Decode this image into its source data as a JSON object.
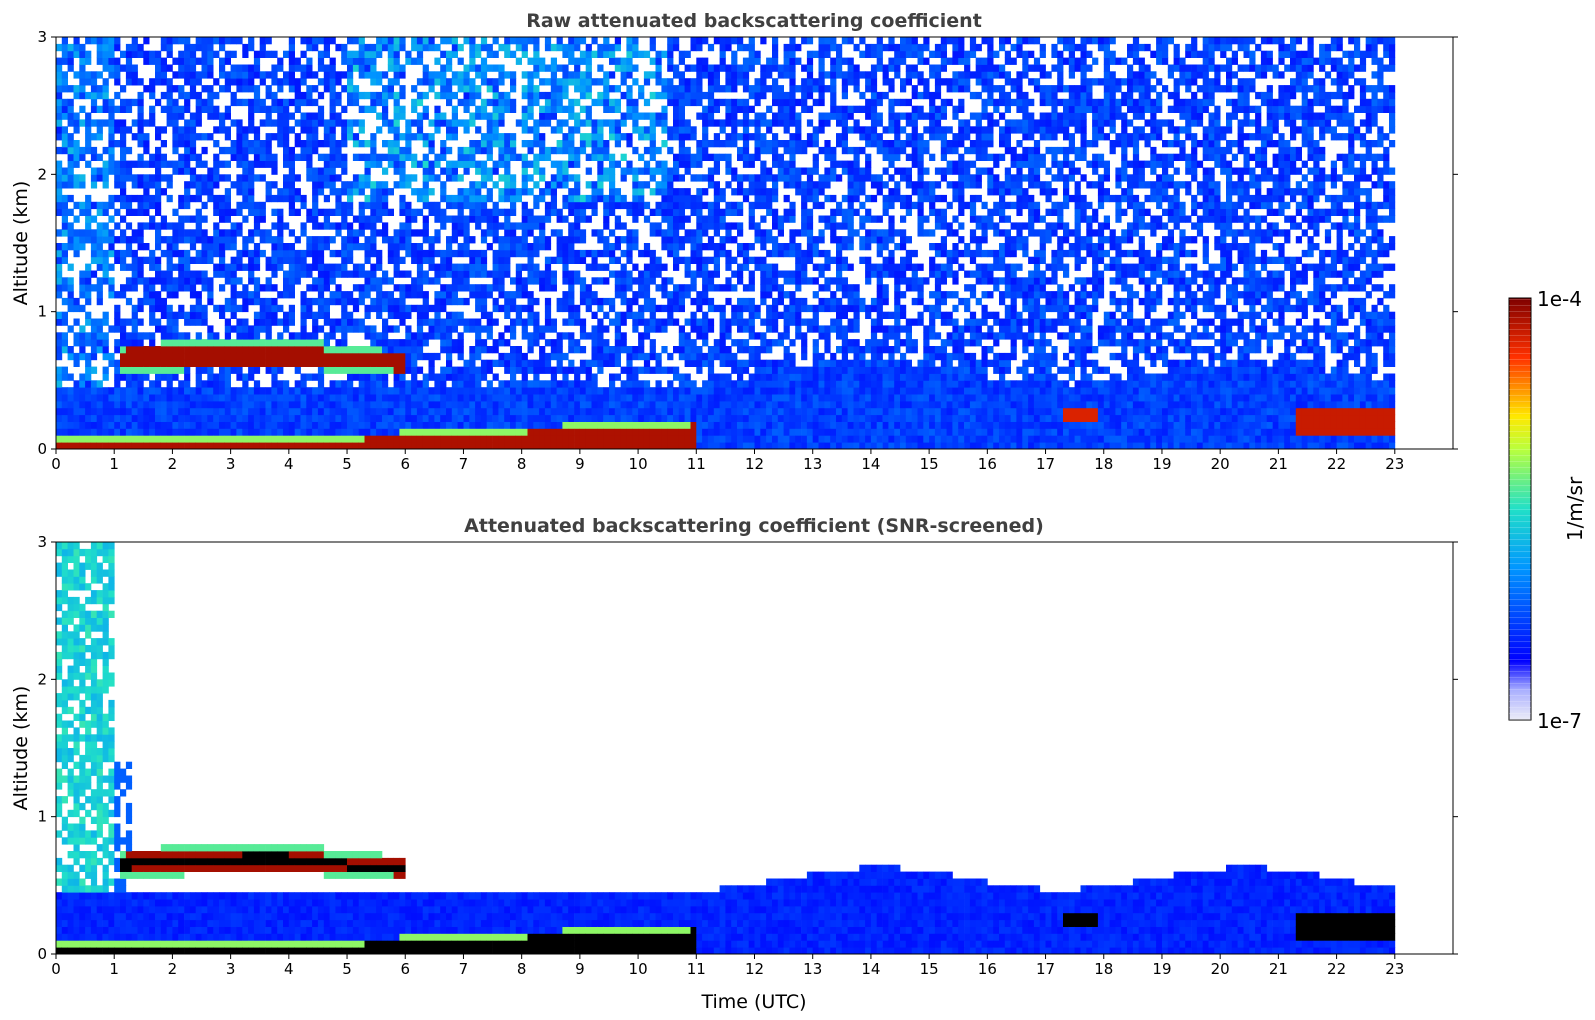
{
  "chart_data": [
    {
      "type": "heatmap",
      "title": "Raw attenuated backscattering coefficient",
      "xlabel": "",
      "ylabel": "Altitude (km)",
      "xlim": [
        0,
        24
      ],
      "ylim": [
        0,
        3
      ],
      "xticks": [
        "0",
        "1",
        "2",
        "3",
        "4",
        "5",
        "6",
        "7",
        "8",
        "9",
        "10",
        "11",
        "12",
        "13",
        "14",
        "15",
        "16",
        "17",
        "18",
        "19",
        "20",
        "21",
        "22",
        "23"
      ],
      "yticks": [
        "0",
        "1",
        "2",
        "3"
      ],
      "data_end_time": 23,
      "features": [
        {
          "desc": "elevated aerosol/cloud layer",
          "t": [
            1.2,
            6.0
          ],
          "alt": [
            0.55,
            0.78
          ],
          "level": "high"
        },
        {
          "desc": "surface layer",
          "t": [
            0,
            11.5
          ],
          "alt": [
            0,
            0.15
          ],
          "level": "high"
        },
        {
          "desc": "boundary layer",
          "t": [
            11,
            23
          ],
          "alt": [
            0,
            0.4
          ],
          "level": "medium"
        },
        {
          "desc": "evening low cloud",
          "t": [
            21.3,
            23
          ],
          "alt": [
            0.1,
            0.3
          ],
          "level": "high"
        }
      ]
    },
    {
      "type": "heatmap",
      "title": "Attenuated backscattering coefficient (SNR-screened)",
      "xlabel": "Time (UTC)",
      "ylabel": "Altitude (km)",
      "xlim": [
        0,
        24
      ],
      "ylim": [
        0,
        3
      ],
      "xticks": [
        "0",
        "1",
        "2",
        "3",
        "4",
        "5",
        "6",
        "7",
        "8",
        "9",
        "10",
        "11",
        "12",
        "13",
        "14",
        "15",
        "16",
        "17",
        "18",
        "19",
        "20",
        "21",
        "22",
        "23"
      ],
      "yticks": [
        "0",
        "1",
        "2",
        "3"
      ],
      "data_end_time": 23
    }
  ],
  "colorbar": {
    "label": "1/m/sr",
    "max_label": "1e-4",
    "min_label": "1e-7",
    "scale": "log",
    "colormap": "jet",
    "low_color": "#e6e6f5",
    "high_color": "#7f0000"
  }
}
